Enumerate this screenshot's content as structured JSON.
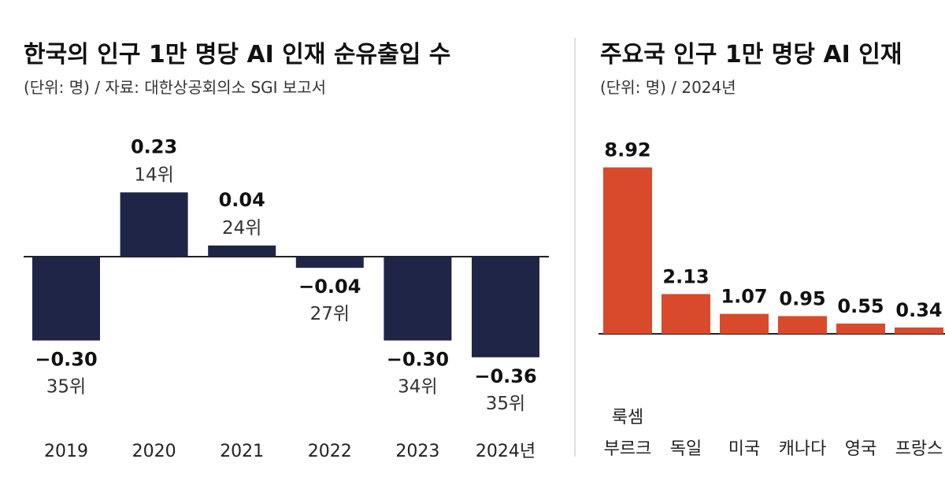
{
  "chart_data": [
    {
      "type": "bar",
      "title": "한국의 인구 1만 명당 AI 인재 순유출입 수",
      "subtitle": "(단위: 명) / 자료: 대한상공회의소 SGI 보고서",
      "categories": [
        "2019",
        "2020",
        "2021",
        "2022",
        "2023",
        "2024년"
      ],
      "values": [
        -0.3,
        0.23,
        0.04,
        -0.04,
        -0.3,
        -0.36
      ],
      "value_labels": [
        "−0.30",
        "0.23",
        "0.04",
        "−0.04",
        "−0.30",
        "−0.36"
      ],
      "rank_labels": [
        "35위",
        "14위",
        "24위",
        "27위",
        "34위",
        "35위"
      ],
      "color": "#1e2547",
      "ylim": [
        -0.4,
        0.3
      ],
      "grid": false
    },
    {
      "type": "bar",
      "title": "주요국 인구 1만 명당 AI 인재",
      "subtitle": "(단위: 명) / 2024년",
      "categories": [
        "룩셈\n부르크",
        "독일",
        "미국",
        "캐나다",
        "영국",
        "프랑스"
      ],
      "values": [
        8.92,
        2.13,
        1.07,
        0.95,
        0.55,
        0.34
      ],
      "value_labels": [
        "8.92",
        "2.13",
        "1.07",
        "0.95",
        "0.55",
        "0.34"
      ],
      "color": "#d84a2b",
      "ylim": [
        0,
        10
      ],
      "grid": false
    }
  ]
}
